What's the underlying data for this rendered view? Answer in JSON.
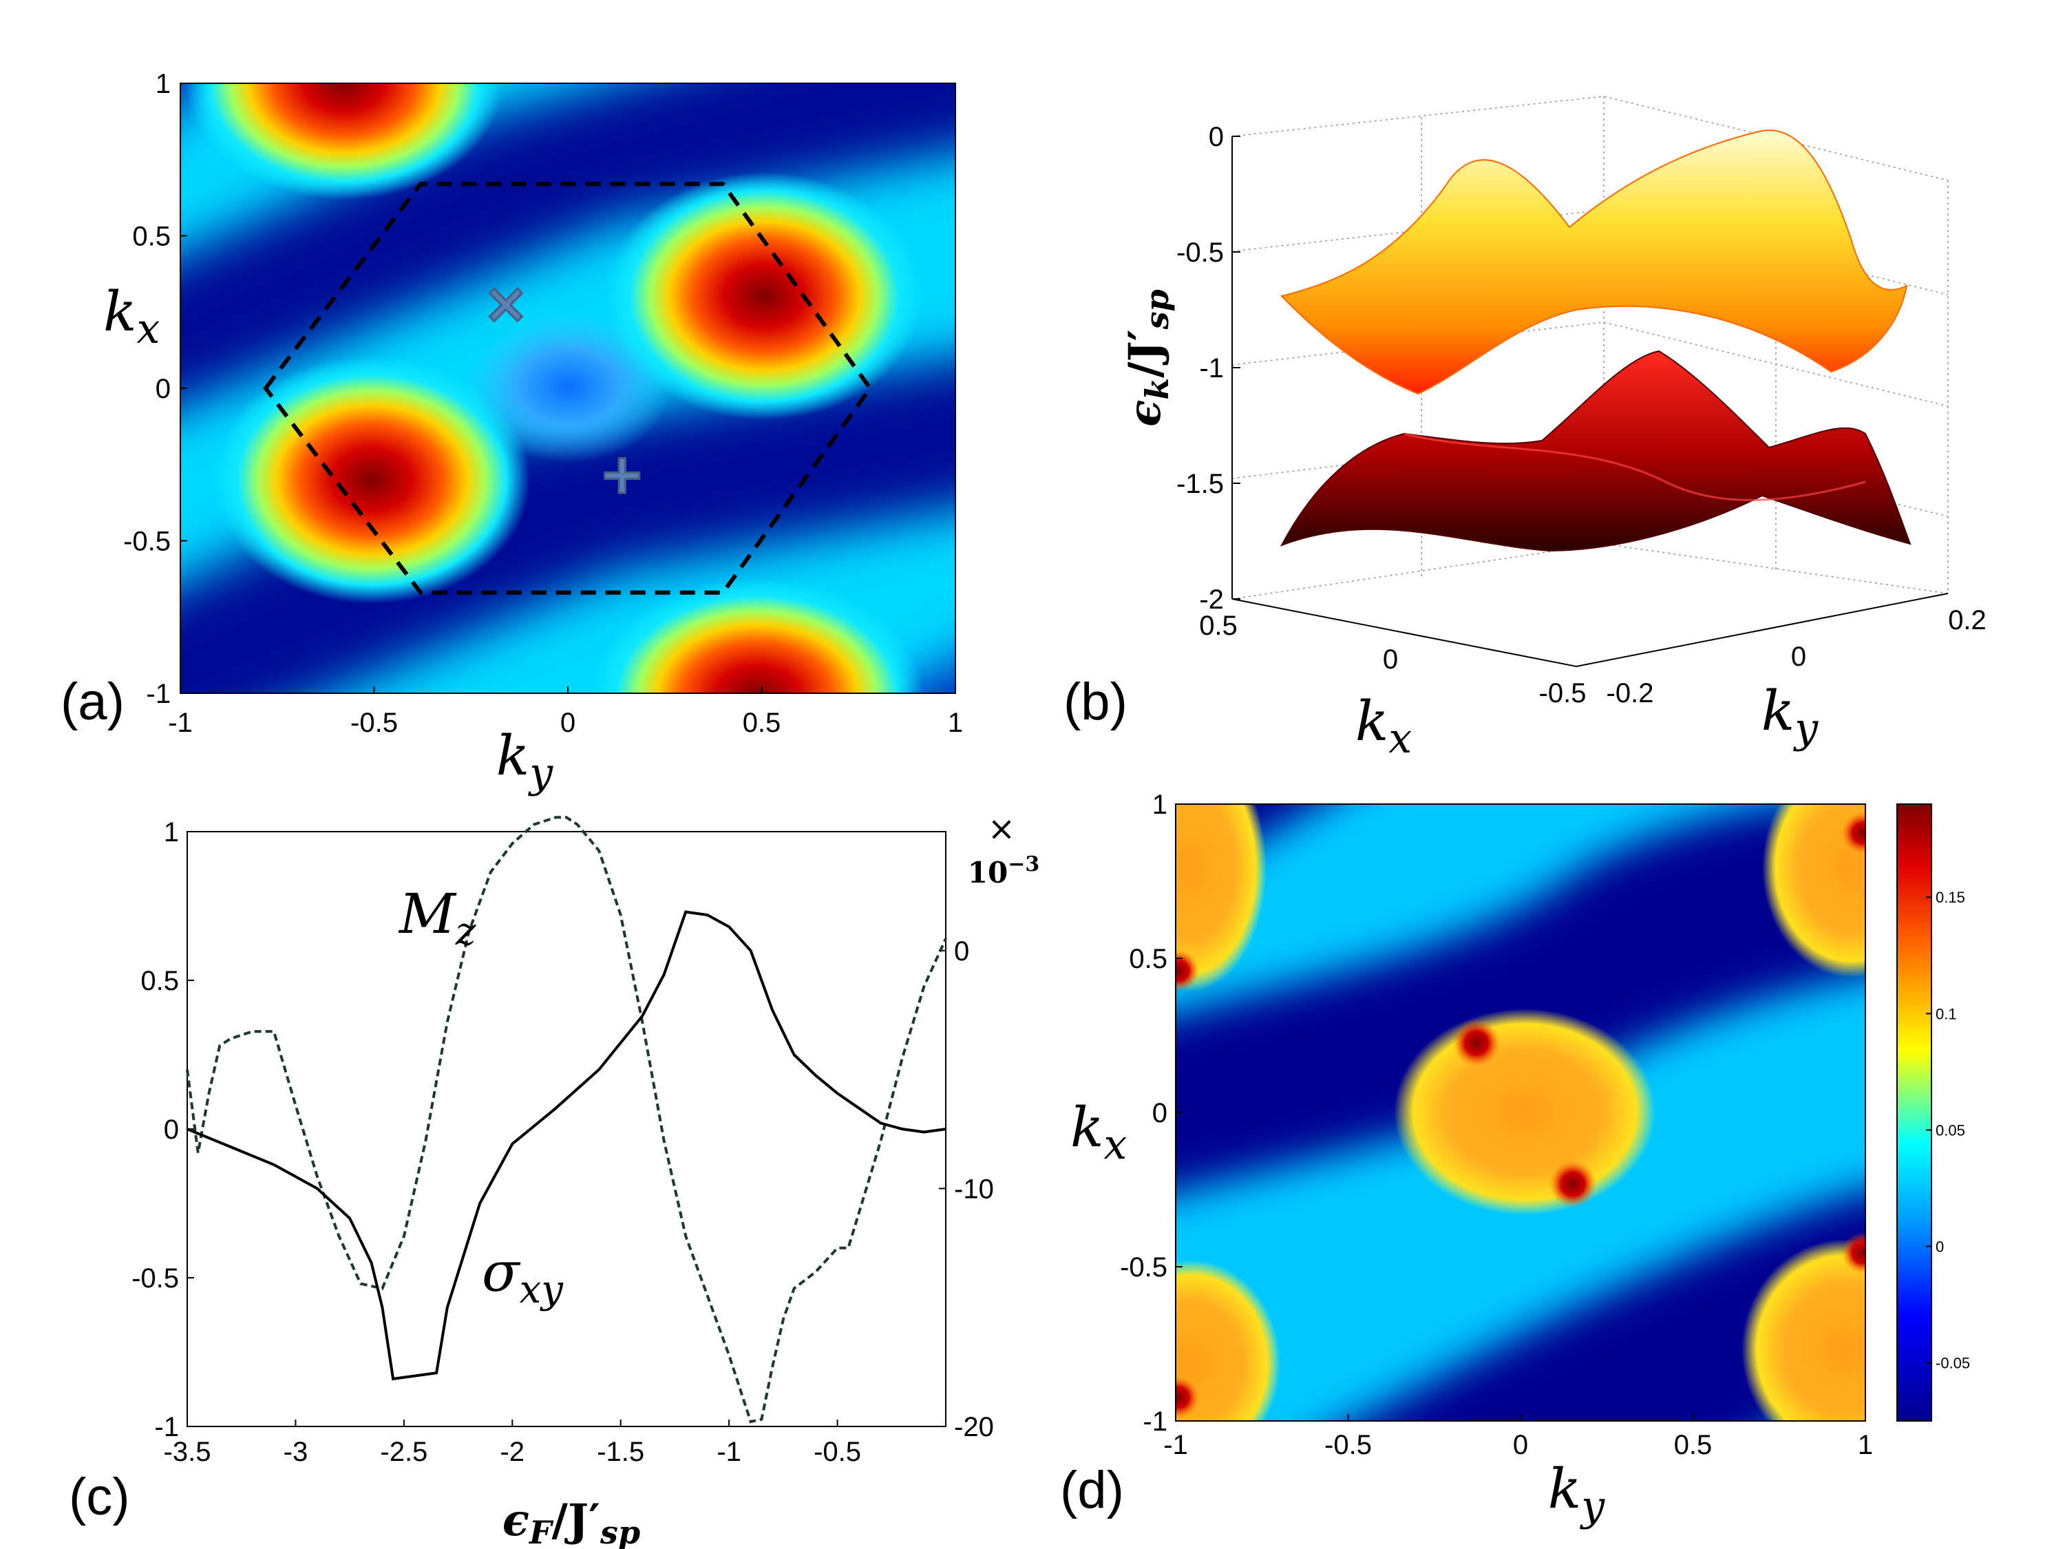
{
  "figure": {
    "panels": {
      "a": {
        "label": "(a)"
      },
      "b": {
        "label": "(b)"
      },
      "c": {
        "label": "(c)"
      },
      "d": {
        "label": "(d)"
      }
    }
  },
  "chart_data": [
    {
      "id": "a",
      "type": "heatmap",
      "title": "",
      "xlabel": "k_y",
      "ylabel": "k_x",
      "xlim": [
        -1,
        1
      ],
      "ylim": [
        -1,
        1
      ],
      "xticks": [
        "-1",
        "-0.5",
        "0",
        "0.5",
        "1"
      ],
      "yticks": [
        "-1",
        "-0.5",
        "0",
        "0.5",
        "1"
      ],
      "colormap": [
        "#00008f",
        "#0050ff",
        "#00dfff",
        "#ffff00",
        "#ff5000",
        "#800000"
      ],
      "hexagon_bz": [
        [
          -0.78,
          0.0
        ],
        [
          -0.38,
          0.67
        ],
        [
          0.4,
          0.67
        ],
        [
          0.78,
          0.0
        ],
        [
          0.4,
          -0.67
        ],
        [
          -0.38,
          -0.67
        ]
      ],
      "markers": [
        {
          "symbol": "×",
          "name": "K-point",
          "ky": -0.16,
          "kx": 0.28
        },
        {
          "symbol": "+",
          "name": "K'-point",
          "ky": 0.14,
          "kx": -0.28
        }
      ],
      "maxima": [
        [
          -0.58,
          -0.3
        ],
        [
          0.58,
          0.3
        ],
        [
          -0.6,
          0.98
        ],
        [
          0.55,
          -0.98
        ]
      ]
    },
    {
      "id": "b",
      "type": "surface",
      "title": "",
      "xlabel": "k_x",
      "ylabel": "k_y",
      "zlabel": "ε_k/J'_sp",
      "zticks": [
        "0",
        "-0.5",
        "-1",
        "-1.5",
        "-2"
      ],
      "xticks": [
        "0.5",
        "0",
        "-0.5"
      ],
      "yticks": [
        "-0.2",
        "0",
        "0.2"
      ],
      "zlim": [
        -2,
        0
      ],
      "bands": [
        {
          "name": "upper band",
          "zrange": [
            -1.1,
            -0.2
          ],
          "colors": [
            "#ff2a00",
            "#ffff99"
          ]
        },
        {
          "name": "lower band",
          "zrange": [
            -1.8,
            -1.0
          ],
          "colors": [
            "#300000",
            "#ff2020"
          ]
        }
      ]
    },
    {
      "id": "c",
      "type": "line",
      "title": "",
      "xlabel": "ε_F/J'_sp",
      "xlim": [
        -3.5,
        0
      ],
      "ylim": [
        -1,
        1
      ],
      "y2lim": [
        -20,
        5
      ],
      "xticks": [
        "-3.5",
        "-3",
        "-2.5",
        "-2",
        "-1.5",
        "-1",
        "-0.5"
      ],
      "yticks": [
        "1",
        "0.5",
        "0",
        "-0.5",
        "-1"
      ],
      "y2ticks": [
        "0",
        "-10",
        "-20"
      ],
      "y2exponent": "×",
      "y2exponent_power": "10",
      "y2exponent_sup": "−3",
      "series": [
        {
          "name": "σ_xy",
          "axis": "left",
          "style": "solid",
          "color": "#000000",
          "x": [
            -3.5,
            -3.3,
            -3.1,
            -2.9,
            -2.75,
            -2.65,
            -2.6,
            -2.55,
            -2.35,
            -2.3,
            -2.15,
            -2.0,
            -1.8,
            -1.6,
            -1.4,
            -1.3,
            -1.2,
            -1.1,
            -1.0,
            -0.9,
            -0.8,
            -0.7,
            -0.6,
            -0.5,
            -0.4,
            -0.3,
            -0.2,
            -0.1,
            0.0
          ],
          "y": [
            0.0,
            -0.06,
            -0.12,
            -0.2,
            -0.3,
            -0.45,
            -0.6,
            -0.84,
            -0.82,
            -0.6,
            -0.25,
            -0.05,
            0.07,
            0.2,
            0.38,
            0.52,
            0.73,
            0.72,
            0.68,
            0.6,
            0.4,
            0.25,
            0.18,
            0.12,
            0.07,
            0.02,
            0.0,
            -0.01,
            0.0
          ]
        },
        {
          "name": "M_z",
          "axis": "right",
          "style": "dashed",
          "color": "#1e3a2a",
          "x": [
            -3.5,
            -3.45,
            -3.4,
            -3.35,
            -3.3,
            -3.2,
            -3.1,
            -3.0,
            -2.9,
            -2.8,
            -2.7,
            -2.6,
            -2.5,
            -2.4,
            -2.3,
            -2.2,
            -2.1,
            -2.0,
            -1.9,
            -1.8,
            -1.75,
            -1.7,
            -1.6,
            -1.5,
            -1.4,
            -1.3,
            -1.2,
            -1.1,
            -1.0,
            -0.9,
            -0.85,
            -0.8,
            -0.75,
            -0.7,
            -0.6,
            -0.5,
            -0.45,
            -0.4,
            -0.3,
            -0.2,
            -0.1,
            0.0
          ],
          "y": [
            -5,
            -8.5,
            -6,
            -4,
            -3.7,
            -3.4,
            -3.4,
            -6.5,
            -9.5,
            -12,
            -14,
            -14.2,
            -12,
            -8,
            -3,
            0.8,
            3.3,
            4.5,
            5.3,
            5.6,
            5.6,
            5.3,
            4.2,
            1.5,
            -3,
            -8,
            -12,
            -14.5,
            -17,
            -19.8,
            -19.7,
            -17.5,
            -15.5,
            -14.2,
            -13.5,
            -12.5,
            -12.5,
            -11,
            -8,
            -4.5,
            -1.5,
            0.5
          ]
        }
      ],
      "annotations": [
        {
          "text": "M",
          "sub": "z"
        },
        {
          "text": "σ",
          "sub": "xy"
        }
      ]
    },
    {
      "id": "d",
      "type": "heatmap",
      "title": "",
      "xlabel": "k_y",
      "ylabel": "k_x",
      "xlim": [
        -1,
        1
      ],
      "ylim": [
        -1,
        1
      ],
      "xticks": [
        "-1",
        "-0.5",
        "0",
        "0.5",
        "1"
      ],
      "yticks": [
        "-1",
        "-0.5",
        "0",
        "0.5",
        "1"
      ],
      "colorbar": {
        "range": [
          -0.075,
          0.19
        ],
        "ticks": [
          "0.15",
          "0.1",
          "0.05",
          "0",
          "-0.05"
        ]
      },
      "colormap": [
        "#00008f",
        "#0050ff",
        "#00dfff",
        "#ffff00",
        "#ff5000",
        "#800000"
      ]
    }
  ]
}
